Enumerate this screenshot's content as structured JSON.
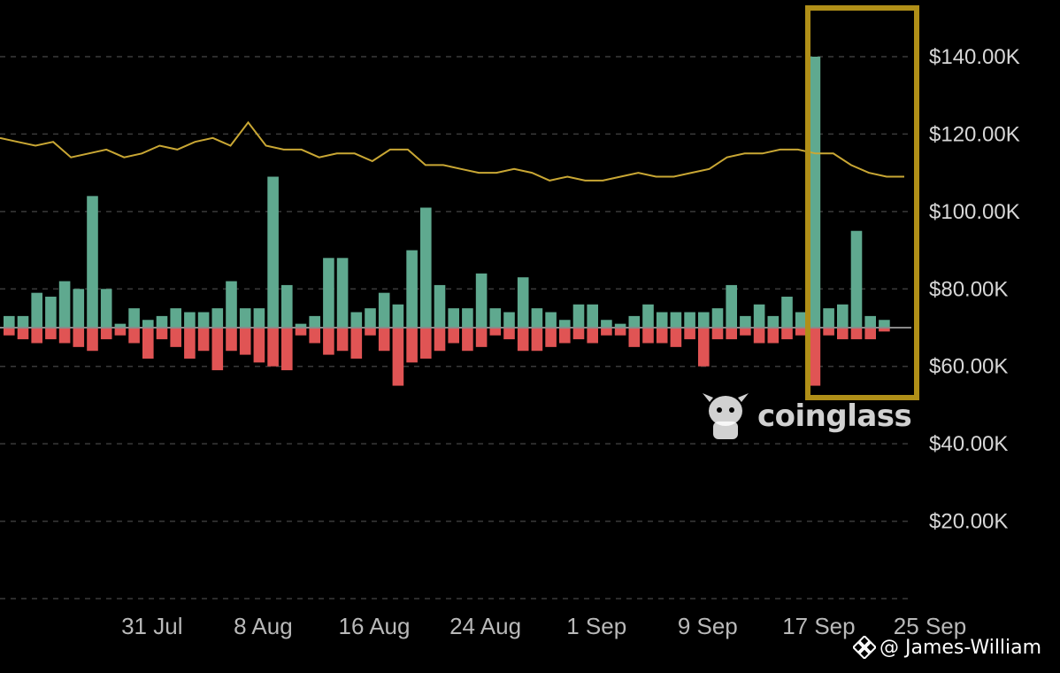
{
  "colors": {
    "background": "#000000",
    "inflow": "#5fa98f",
    "outflow": "#e05454",
    "price_line": "#c9a734",
    "highlight_box": "#b08f18",
    "grid": "#3a3a3a"
  },
  "watermark": {
    "brand": "coinglass",
    "icon": "bull-icon"
  },
  "credit": {
    "text": "@ James-William",
    "icon": "binance-icon"
  },
  "chart_data": {
    "type": "bar",
    "ylim": [
      0,
      150000
    ],
    "yticks": [
      {
        "value": 140000,
        "label": "$140.00K"
      },
      {
        "value": 120000,
        "label": "$120.00K"
      },
      {
        "value": 100000,
        "label": "$100.00K"
      },
      {
        "value": 80000,
        "label": "$80.00K"
      },
      {
        "value": 60000,
        "label": "$60.00K"
      },
      {
        "value": 40000,
        "label": "$40.00K"
      },
      {
        "value": 20000,
        "label": "$20.00K"
      }
    ],
    "baseline": 70000,
    "xticks": [
      {
        "index": 5,
        "label": "31 Jul"
      },
      {
        "index": 13,
        "label": "8 Aug"
      },
      {
        "index": 21,
        "label": "16 Aug"
      },
      {
        "index": 29,
        "label": "24 Aug"
      },
      {
        "index": 37,
        "label": "1 Sep"
      },
      {
        "index": 45,
        "label": "9 Sep"
      },
      {
        "index": 53,
        "label": "17 Sep"
      },
      {
        "index": 61,
        "label": "25 Sep"
      }
    ],
    "series": [
      {
        "kind": "positive",
        "values": [
          73000,
          73000,
          79000,
          78000,
          82000,
          80000,
          104000,
          80000,
          71000,
          75000,
          72000,
          73000,
          75000,
          74000,
          74000,
          75000,
          82000,
          75000,
          75000,
          109000,
          81000,
          71000,
          73000,
          88000,
          88000,
          74000,
          75000,
          79000,
          76000,
          90000,
          101000,
          81000,
          75000,
          75000,
          84000,
          75000,
          74000,
          83000,
          75000,
          74000,
          72000,
          76000,
          76000,
          72000,
          71000,
          73000,
          76000,
          74000,
          74000,
          74000,
          74000,
          75000,
          81000,
          73000,
          76000,
          73000,
          78000,
          74000,
          140000,
          75000,
          76000,
          95000,
          73000,
          72000
        ]
      },
      {
        "kind": "negative",
        "values": [
          68000,
          67000,
          66000,
          67000,
          66000,
          65000,
          64000,
          67000,
          68000,
          66000,
          62000,
          67000,
          65000,
          62000,
          64000,
          59000,
          64000,
          63000,
          61000,
          60000,
          59000,
          68000,
          66000,
          63000,
          64000,
          62000,
          68000,
          64000,
          55000,
          61000,
          62000,
          64000,
          66000,
          64000,
          65000,
          68000,
          67000,
          64000,
          64000,
          65000,
          66000,
          67000,
          66000,
          68000,
          68000,
          65000,
          66000,
          66000,
          65000,
          67000,
          60000,
          67000,
          67000,
          68000,
          66000,
          66000,
          67000,
          68000,
          55000,
          68000,
          67000,
          67000,
          67000,
          69000
        ]
      },
      {
        "kind": "price_line",
        "values": [
          119000,
          118000,
          117000,
          118000,
          114000,
          115000,
          116000,
          114000,
          115000,
          117000,
          116000,
          118000,
          119000,
          117000,
          123000,
          117000,
          116000,
          116000,
          114000,
          115000,
          115000,
          113000,
          116000,
          116000,
          112000,
          112000,
          111000,
          110000,
          110000,
          111000,
          110000,
          108000,
          109000,
          108000,
          108000,
          109000,
          110000,
          109000,
          109000,
          110000,
          111000,
          114000,
          115000,
          115000,
          116000,
          116000,
          115000,
          115000,
          112000,
          110000,
          109000,
          109000
        ]
      }
    ]
  }
}
